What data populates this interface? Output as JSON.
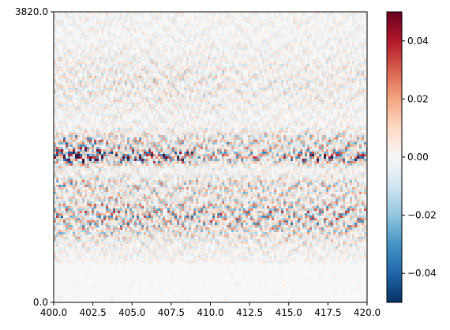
{
  "chart_data": {
    "type": "heatmap",
    "title": "",
    "xlabel": "",
    "ylabel": "",
    "xlim": [
      400.0,
      420.0
    ],
    "ylim": [
      0.0,
      3820.0
    ],
    "x_ticks": [
      "400.0",
      "402.5",
      "405.0",
      "407.5",
      "410.0",
      "412.5",
      "415.0",
      "417.5",
      "420.0"
    ],
    "y_ticks": [
      "0.0",
      "3820.0"
    ],
    "colormap": "RdBu_r",
    "color_range": [
      -0.05,
      0.05
    ],
    "colorbar_ticks": [
      "0.04",
      "0.02",
      "0.00",
      "−0.02",
      "−0.04"
    ],
    "colorbar_tick_values": [
      0.04,
      0.02,
      0.0,
      -0.02,
      -0.04
    ],
    "colors": {
      "low": "#053061",
      "mid": "#f7f7f7",
      "high": "#67001f"
    }
  }
}
